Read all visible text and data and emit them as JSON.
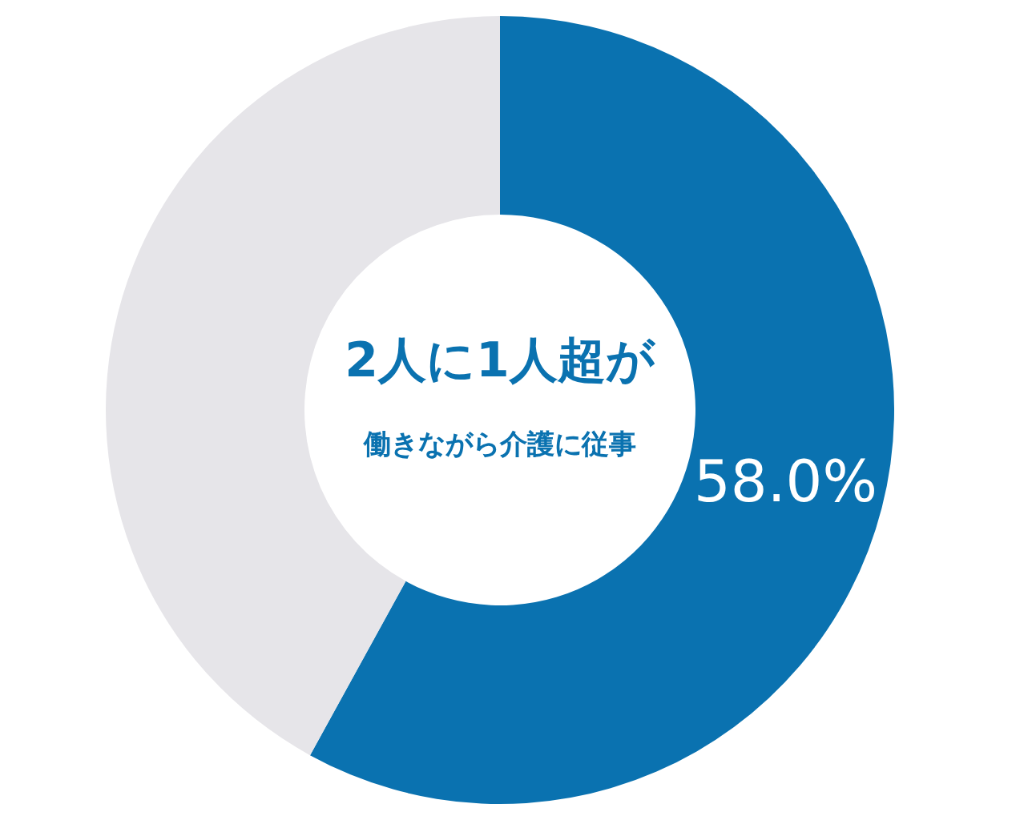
{
  "chart_data": {
    "type": "donut",
    "categories": [
      null,
      null
    ],
    "values": [
      58.0,
      42.0
    ],
    "colors": [
      "#0a72b0",
      "#e6e5e9"
    ],
    "value_labels": [
      "58.0%",
      null
    ],
    "annotations": [
      "2人に1人超が",
      "働きながら介護に従事"
    ]
  }
}
